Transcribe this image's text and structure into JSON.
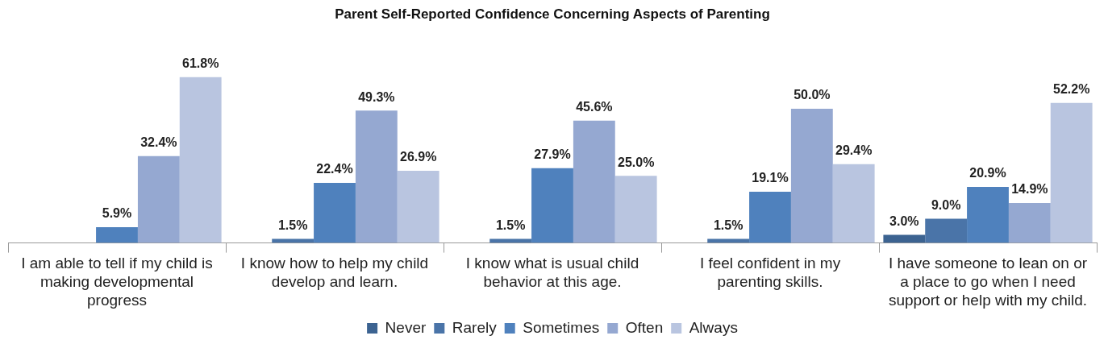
{
  "chart_data": {
    "type": "bar",
    "title": "Parent Self-Reported Confidence Concerning Aspects of Parenting",
    "categories": [
      "I am able to tell if my child is making developmental progress",
      "I know how to help my child develop and learn.",
      "I know what is usual child behavior at this age.",
      "I feel confident in my parenting skills.",
      "I have someone to lean on or a place to go when I need support or help with my child."
    ],
    "series": [
      {
        "name": "Never",
        "color": "#3c6391",
        "values": [
          null,
          null,
          null,
          null,
          3.0
        ],
        "value_labels": [
          null,
          null,
          null,
          null,
          "3.0%"
        ]
      },
      {
        "name": "Rarely",
        "color": "#4a74a8",
        "values": [
          null,
          1.5,
          1.5,
          1.5,
          9.0
        ],
        "value_labels": [
          null,
          "1.5%",
          "1.5%",
          "1.5%",
          "9.0%"
        ]
      },
      {
        "name": "Sometimes",
        "color": "#4f81bd",
        "values": [
          5.9,
          22.4,
          27.9,
          19.1,
          20.9
        ],
        "value_labels": [
          "5.9%",
          "22.4%",
          "27.9%",
          "19.1%",
          "20.9%"
        ]
      },
      {
        "name": "Often",
        "color": "#95a8d1",
        "values": [
          32.4,
          49.3,
          45.6,
          50.0,
          14.9
        ],
        "value_labels": [
          "32.4%",
          "49.3%",
          "45.6%",
          "50.0%",
          "14.9%"
        ]
      },
      {
        "name": "Always",
        "color": "#b9c5e0",
        "values": [
          61.8,
          26.9,
          25.0,
          29.4,
          52.2
        ],
        "value_labels": [
          "61.8%",
          "26.9%",
          "25.0%",
          "29.4%",
          "52.2%"
        ]
      }
    ],
    "legend": "bottom",
    "grid": false
  }
}
